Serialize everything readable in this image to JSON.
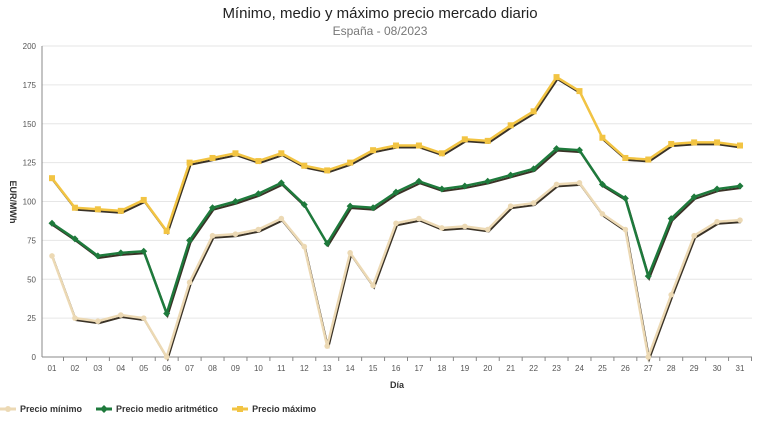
{
  "chart_data": {
    "type": "line",
    "title": "Mínimo, medio y máximo precio mercado diario",
    "subtitle": "España - 08/2023",
    "xlabel": "Día",
    "ylabel": "EUR/MWh",
    "ylim": [
      0,
      200
    ],
    "yticks": [
      "0",
      "25",
      "50",
      "75",
      "100",
      "125",
      "150",
      "175",
      "200"
    ],
    "categories": [
      "01",
      "02",
      "03",
      "04",
      "05",
      "06",
      "07",
      "08",
      "09",
      "10",
      "11",
      "12",
      "13",
      "14",
      "15",
      "16",
      "17",
      "18",
      "19",
      "20",
      "21",
      "22",
      "23",
      "24",
      "25",
      "26",
      "27",
      "28",
      "29",
      "30",
      "31"
    ],
    "series": [
      {
        "name": "Precio mínimo",
        "color": "#ecd9b4",
        "values": [
          65,
          25,
          23,
          27,
          25,
          0,
          48,
          78,
          79,
          82,
          89,
          71,
          7,
          67,
          46,
          86,
          89,
          83,
          84,
          82,
          97,
          99,
          111,
          112,
          92,
          82,
          0,
          40,
          78,
          87,
          88
        ]
      },
      {
        "name": "Precio medio aritmético",
        "color": "#1e7a3c",
        "values": [
          86,
          76,
          65,
          67,
          68,
          28,
          75,
          96,
          100,
          105,
          112,
          98,
          73,
          97,
          96,
          106,
          113,
          108,
          110,
          113,
          117,
          121,
          134,
          133,
          111,
          102,
          52,
          89,
          103,
          108,
          110
        ]
      },
      {
        "name": "Precio máximo",
        "color": "#f2c443",
        "values": [
          115,
          96,
          95,
          94,
          101,
          81,
          125,
          128,
          131,
          126,
          131,
          123,
          120,
          125,
          133,
          136,
          136,
          131,
          140,
          139,
          149,
          158,
          180,
          171,
          141,
          128,
          127,
          137,
          138,
          138,
          136
        ]
      }
    ],
    "grid": true,
    "legend_position": "bottom-left"
  }
}
